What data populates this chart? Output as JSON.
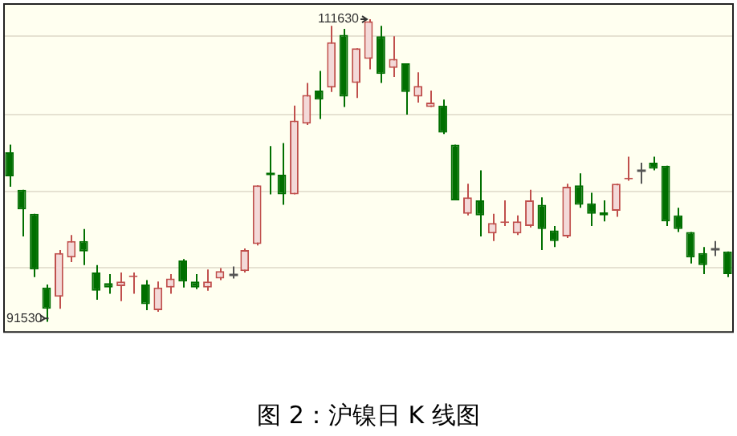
{
  "chart_data": {
    "type": "candlestick",
    "title": "图 2：沪镍日 K 线图",
    "categories": [
      null,
      null,
      null,
      null,
      null,
      null,
      null,
      null,
      null,
      null,
      null,
      null,
      null,
      null,
      null,
      null,
      null,
      null,
      null,
      null,
      null,
      null,
      null,
      null,
      null,
      null,
      null,
      null,
      null,
      null,
      null,
      null,
      null,
      null,
      null,
      null,
      null,
      null,
      null,
      null,
      null,
      null,
      null,
      null,
      null,
      null,
      null,
      null,
      null,
      null,
      null,
      null,
      null,
      null,
      null,
      null,
      null,
      null,
      null
    ],
    "ohlc": [
      [
        102800,
        103300,
        100500,
        101200
      ],
      [
        100300,
        100300,
        97200,
        99000
      ],
      [
        98700,
        98700,
        94500,
        95000
      ],
      [
        93800,
        94000,
        91530,
        92400
      ],
      [
        93200,
        96300,
        92400,
        96100
      ],
      [
        95800,
        97300,
        95500,
        96900
      ],
      [
        96900,
        97700,
        95300,
        96200
      ],
      [
        94800,
        95300,
        93000,
        93600
      ],
      [
        94100,
        94700,
        93400,
        93800
      ],
      [
        93900,
        94800,
        92900,
        94200
      ],
      [
        94500,
        94800,
        93400,
        94600
      ],
      [
        94000,
        94300,
        92300,
        92700
      ],
      [
        92300,
        94200,
        92200,
        93800
      ],
      [
        93800,
        94700,
        93400,
        94400
      ],
      [
        95600,
        95700,
        93800,
        94200
      ],
      [
        94200,
        94700,
        93700,
        93800
      ],
      [
        93800,
        95000,
        93600,
        94200
      ],
      [
        94400,
        95100,
        94300,
        94900
      ],
      [
        94700,
        95200,
        94400,
        94700
      ],
      [
        94900,
        96400,
        94800,
        96300
      ],
      [
        96700,
        100600,
        96600,
        100600
      ],
      [
        101400,
        103200,
        100000,
        101400
      ],
      [
        101300,
        103400,
        99300,
        100000
      ],
      [
        100000,
        105900,
        100000,
        104900
      ],
      [
        104700,
        107400,
        104600,
        106600
      ],
      [
        106900,
        108200,
        105000,
        106300
      ],
      [
        107100,
        111200,
        106800,
        110100
      ],
      [
        110600,
        111000,
        105800,
        106500
      ],
      [
        107400,
        109700,
        106400,
        109700
      ],
      [
        109000,
        111630,
        108300,
        111500
      ],
      [
        110500,
        111200,
        107400,
        108000
      ],
      [
        108400,
        110500,
        107800,
        109000
      ],
      [
        108700,
        108700,
        105300,
        106800
      ],
      [
        106500,
        108100,
        106100,
        107200
      ],
      [
        105800,
        106900,
        105800,
        106100
      ],
      [
        105900,
        106300,
        104000,
        104100
      ],
      [
        103300,
        103300,
        99600,
        99600
      ],
      [
        98700,
        100700,
        98600,
        99800
      ],
      [
        99600,
        101600,
        97200,
        98600
      ],
      [
        97400,
        98700,
        96900,
        98100
      ],
      [
        98100,
        99600,
        97900,
        98200
      ],
      [
        97400,
        98600,
        97300,
        98200
      ],
      [
        97900,
        100300,
        97800,
        99600
      ],
      [
        99300,
        99800,
        96300,
        97700
      ],
      [
        97600,
        97900,
        96500,
        96900
      ],
      [
        97200,
        100700,
        97100,
        100500
      ],
      [
        100600,
        101400,
        99100,
        99300
      ],
      [
        99400,
        100100,
        97900,
        98700
      ],
      [
        98800,
        99600,
        98200,
        98600
      ],
      [
        98900,
        100700,
        98500,
        100700
      ],
      [
        101000,
        102500,
        100900,
        101100
      ],
      [
        101600,
        102100,
        100700,
        101600
      ],
      [
        102100,
        102500,
        101600,
        101700
      ],
      [
        101900,
        101900,
        97900,
        98200
      ],
      [
        98600,
        99100,
        97500,
        97700
      ],
      [
        97500,
        97500,
        95400,
        95800
      ],
      [
        96100,
        96500,
        94700,
        95300
      ],
      [
        96400,
        96900,
        95900,
        96400
      ],
      [
        96200,
        96200,
        94500,
        94700
      ]
    ],
    "colors": [
      "#006f00",
      "#006f00",
      "#006f00",
      "#006f00",
      "#c0504d",
      "#c0504d",
      "#006f00",
      "#006f00",
      "#006f00",
      "#c0504d",
      "#c0504d",
      "#006f00",
      "#c0504d",
      "#c0504d",
      "#006f00",
      "#006f00",
      "#c0504d",
      "#c0504d",
      "#555555",
      "#c0504d",
      "#c0504d",
      "#006f00",
      "#006f00",
      "#c0504d",
      "#c0504d",
      "#006f00",
      "#c0504d",
      "#006f00",
      "#c0504d",
      "#c0504d",
      "#006f00",
      "#c0504d",
      "#006f00",
      "#c0504d",
      "#c0504d",
      "#006f00",
      "#006f00",
      "#c0504d",
      "#006f00",
      "#c0504d",
      "#c0504d",
      "#c0504d",
      "#c0504d",
      "#006f00",
      "#006f00",
      "#c0504d",
      "#006f00",
      "#006f00",
      "#006f00",
      "#c0504d",
      "#c0504d",
      "#555555",
      "#006f00",
      "#006f00",
      "#006f00",
      "#006f00",
      "#006f00",
      "#555555",
      "#006f00"
    ],
    "ylim": [
      90800,
      112700
    ],
    "yticks": [
      {
        "value": 95100,
        "label": null
      },
      {
        "value": 100200,
        "label": null
      },
      {
        "value": 105300,
        "label": null
      },
      {
        "value": 110500,
        "label": null
      }
    ],
    "grid": "y",
    "legend": false,
    "annotations": [
      "111630",
      "91530"
    ]
  }
}
